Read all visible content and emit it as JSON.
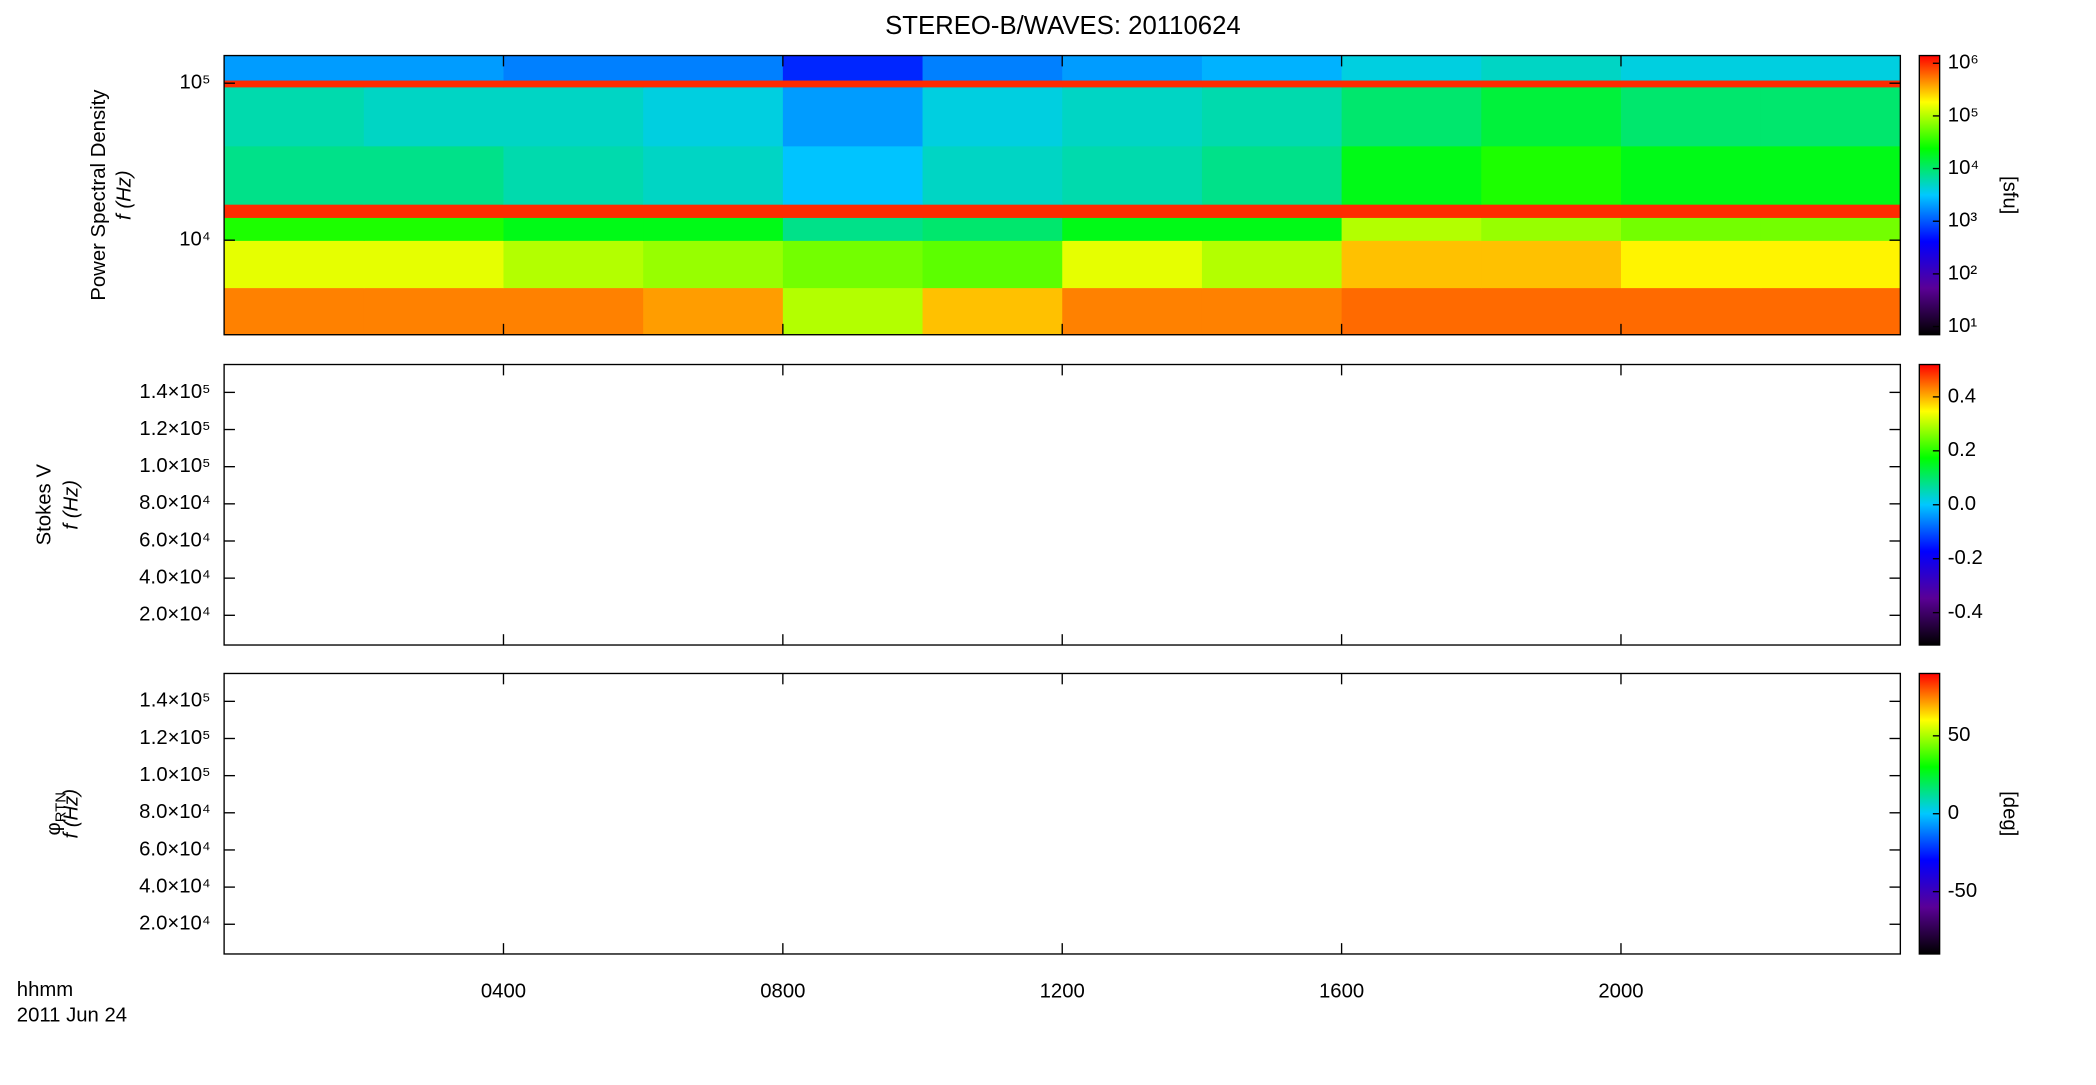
{
  "title": "STEREO-B/WAVES: 20110624",
  "xlabel": "hhmm",
  "date": "2011 Jun 24",
  "xlim": [
    0,
    24
  ],
  "xticks": [
    {
      "value": 4,
      "label": "0400"
    },
    {
      "value": 8,
      "label": "0800"
    },
    {
      "value": 12,
      "label": "1200"
    },
    {
      "value": 16,
      "label": "1600"
    },
    {
      "value": 20,
      "label": "2000"
    }
  ],
  "colormap": [
    "#000000",
    "#5a0096",
    "#0000ff",
    "#00c8ff",
    "#00ff00",
    "#ffff00",
    "#ff0000"
  ],
  "chart_data": [
    {
      "type": "heatmap",
      "ylabel": "Power Spectral Density",
      "ylabel2": "f (Hz)",
      "yscale": "log",
      "ylim": [
        2500,
        150000
      ],
      "yticks": [
        {
          "value": 10000,
          "label": "10⁴"
        },
        {
          "value": 100000,
          "label": "10⁵"
        }
      ],
      "time_bins": [
        0,
        2,
        4,
        6,
        8,
        10,
        12,
        14,
        16,
        18,
        20,
        22,
        24
      ],
      "frequency_bands": [
        2500,
        5000,
        10000,
        14000,
        17000,
        40000,
        95000,
        105000,
        150000
      ],
      "values": [
        [
          500000,
          500000,
          500000,
          400000,
          100000,
          300000,
          500000,
          500000,
          600000,
          600000,
          600000,
          600000
        ],
        [
          150000,
          150000,
          100000,
          80000,
          60000,
          50000,
          150000,
          100000,
          300000,
          300000,
          200000,
          200000
        ],
        [
          30000,
          30000,
          20000,
          20000,
          8000,
          10000,
          20000,
          20000,
          100000,
          80000,
          60000,
          60000
        ],
        [
          1000000,
          1000000,
          1000000,
          1000000,
          1000000,
          1000000,
          1000000,
          1000000,
          1000000,
          1000000,
          1000000,
          1000000
        ],
        [
          8000,
          8000,
          6000,
          5000,
          3000,
          5000,
          6000,
          8000,
          20000,
          30000,
          20000,
          20000
        ],
        [
          6000,
          5000,
          5000,
          4000,
          2000,
          4000,
          5000,
          6000,
          10000,
          15000,
          10000,
          10000
        ],
        [
          1000000,
          1000000,
          1000000,
          1000000,
          1000000,
          1000000,
          1000000,
          1000000,
          1000000,
          1000000,
          1000000,
          1000000
        ],
        [
          2000,
          2000,
          1500,
          1500,
          600,
          1500,
          2000,
          2500,
          4000,
          5000,
          4000,
          4000
        ]
      ],
      "colorbar": {
        "label": "[sfu]",
        "scale": "log",
        "lim": [
          7,
          1400000
        ],
        "ticks": [
          {
            "value": 10,
            "label": "10¹"
          },
          {
            "value": 100,
            "label": "10²"
          },
          {
            "value": 1000,
            "label": "10³"
          },
          {
            "value": 10000,
            "label": "10⁴"
          },
          {
            "value": 100000,
            "label": "10⁵"
          },
          {
            "value": 1000000,
            "label": "10⁶"
          }
        ]
      }
    },
    {
      "type": "heatmap",
      "ylabel": "Stokes V",
      "ylabel2": "f (Hz)",
      "yscale": "linear",
      "ylim": [
        4000,
        155000
      ],
      "yticks": [
        {
          "value": 20000,
          "label": "2.0×10⁴"
        },
        {
          "value": 40000,
          "label": "4.0×10⁴"
        },
        {
          "value": 60000,
          "label": "6.0×10⁴"
        },
        {
          "value": 80000,
          "label": "8.0×10⁴"
        },
        {
          "value": 100000,
          "label": "1.0×10⁵"
        },
        {
          "value": 120000,
          "label": "1.2×10⁵"
        },
        {
          "value": 140000,
          "label": "1.4×10⁵"
        }
      ],
      "colorbar": {
        "scale": "linear",
        "lim": [
          -0.52,
          0.52
        ],
        "ticks": [
          -0.4,
          -0.2,
          {
            "value": 0,
            "label": "0.0"
          },
          0.2,
          0.4
        ]
      }
    },
    {
      "type": "heatmap",
      "ylabel": "φ",
      "ylabel_sub": "RTN",
      "ylabel2": "f (Hz)",
      "yscale": "linear",
      "ylim": [
        4000,
        155000
      ],
      "yticks": [
        {
          "value": 20000,
          "label": "2.0×10⁴"
        },
        {
          "value": 40000,
          "label": "4.0×10⁴"
        },
        {
          "value": 60000,
          "label": "6.0×10⁴"
        },
        {
          "value": 80000,
          "label": "8.0×10⁴"
        },
        {
          "value": 100000,
          "label": "1.0×10⁵"
        },
        {
          "value": 120000,
          "label": "1.2×10⁵"
        },
        {
          "value": 140000,
          "label": "1.4×10⁵"
        }
      ],
      "colorbar": {
        "label": "[deg]",
        "scale": "linear",
        "lim": [
          -90,
          90
        ],
        "ticks": [
          -50,
          0,
          50
        ]
      }
    }
  ]
}
